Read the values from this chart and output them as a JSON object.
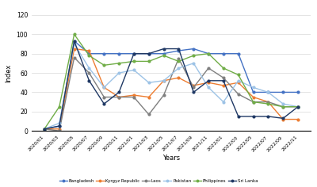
{
  "x_labels": [
    "2020/01",
    "2020/03",
    "2020/05",
    "2020/07",
    "2020/09",
    "2020/11",
    "2021/01",
    "2021/03",
    "2021/05",
    "2021/07",
    "2021/09",
    "2021/11",
    "2022/01",
    "2022/03",
    "2022/05",
    "2022/07",
    "2022/09",
    "2022/11"
  ],
  "Bangladesh": [
    2,
    5,
    93,
    80,
    80,
    80,
    80,
    80,
    80,
    83,
    85,
    80,
    80,
    80,
    40,
    40,
    40,
    40
  ],
  "Kyrgyz_Republic": [
    2,
    2,
    85,
    83,
    45,
    35,
    37,
    35,
    52,
    55,
    47,
    50,
    47,
    50,
    35,
    30,
    12,
    12
  ],
  "Laos": [
    2,
    0,
    76,
    60,
    35,
    35,
    35,
    17,
    37,
    75,
    45,
    65,
    55,
    38,
    30,
    30,
    25,
    25
  ],
  "Pakistan": [
    2,
    8,
    90,
    65,
    45,
    60,
    63,
    50,
    52,
    65,
    70,
    45,
    30,
    52,
    45,
    40,
    28,
    25
  ],
  "Philippines": [
    2,
    25,
    100,
    78,
    68,
    70,
    72,
    72,
    78,
    72,
    78,
    80,
    65,
    58,
    30,
    28,
    25,
    25
  ],
  "Sri_Lanka": [
    2,
    5,
    93,
    52,
    28,
    40,
    80,
    80,
    85,
    85,
    40,
    52,
    52,
    15,
    15,
    15,
    13,
    25
  ],
  "colors": {
    "Bangladesh": "#4472C4",
    "Kyrgyz_Republic": "#ED7D31",
    "Laos": "#7F7F7F",
    "Pakistan": "#9DC3E6",
    "Philippines": "#70AD47",
    "Sri_Lanka": "#1F3864"
  },
  "ylabel": "Index",
  "xlabel": "Years",
  "ylim": [
    0,
    120
  ],
  "yticks": [
    0,
    20,
    40,
    60,
    80,
    100,
    120
  ],
  "legend_labels": [
    "Bangladesh",
    "Kyrgyz Republic",
    "Laos",
    "Pakistan",
    "Philippines",
    "Sri Lanka"
  ],
  "legend_keys": [
    "Bangladesh",
    "Kyrgyz_Republic",
    "Laos",
    "Pakistan",
    "Philippines",
    "Sri_Lanka"
  ]
}
